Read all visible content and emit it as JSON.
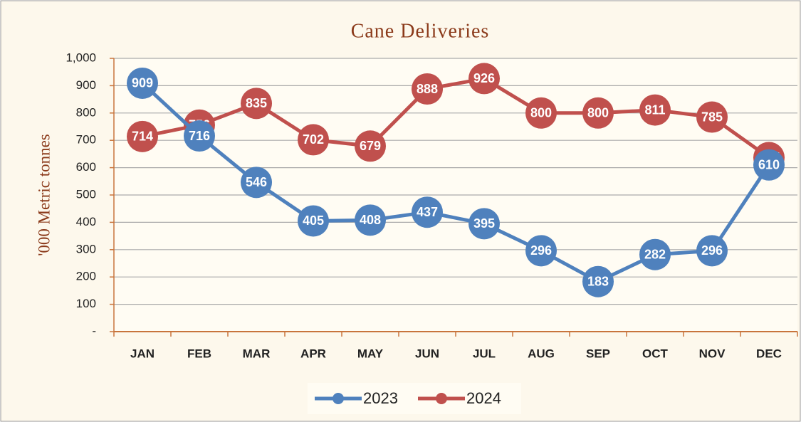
{
  "chart_data": {
    "type": "line",
    "title": "Cane Deliveries",
    "y_label": "'000 Metric tonnes",
    "categories": [
      "JAN",
      "FEB",
      "MAR",
      "APR",
      "MAY",
      "JUN",
      "JUL",
      "AUG",
      "SEP",
      "OCT",
      "NOV",
      "DEC"
    ],
    "series": [
      {
        "name": "2023",
        "color": "#4f81bd",
        "values": [
          909,
          716,
          546,
          405,
          408,
          437,
          395,
          296,
          183,
          282,
          296,
          610
        ]
      },
      {
        "name": "2024",
        "color": "#c0504d",
        "values": [
          714,
          756,
          835,
          702,
          679,
          888,
          926,
          800,
          800,
          811,
          785,
          637
        ]
      }
    ],
    "ylim": [
      0,
      1000
    ],
    "yticks": [
      {
        "value": 0,
        "label": "-"
      },
      100,
      200,
      300,
      400,
      500,
      600,
      700,
      800,
      900,
      {
        "value": 1000,
        "label": "1,000"
      }
    ],
    "grid": true,
    "legend": "bottom"
  }
}
